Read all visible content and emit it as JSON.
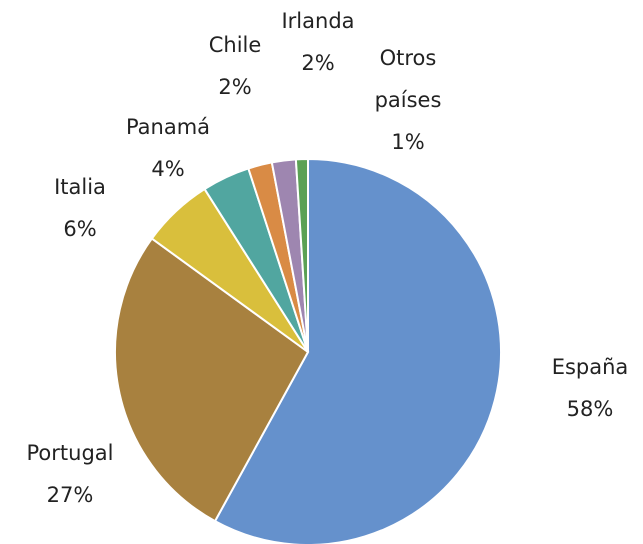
{
  "chart_data": {
    "type": "pie",
    "categories": [
      "España",
      "Portugal",
      "Italia",
      "Panamá",
      "Chile",
      "Irlanda",
      "Otros países"
    ],
    "values": [
      58,
      27,
      6,
      4,
      2,
      2,
      1
    ],
    "value_labels": [
      "58%",
      "27%",
      "6%",
      "4%",
      "2%",
      "2%",
      "1%"
    ],
    "colors": [
      "#6591cc",
      "#a8813f",
      "#d9bf3c",
      "#51a6a0",
      "#d98b45",
      "#9e86b0",
      "#5ba155"
    ]
  }
}
